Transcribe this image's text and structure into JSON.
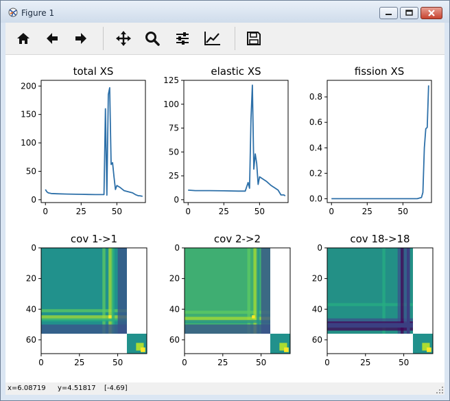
{
  "window": {
    "title": "Figure 1"
  },
  "toolbar": {
    "buttons": [
      {
        "name": "home-button",
        "icon": "home-icon"
      },
      {
        "name": "back-button",
        "icon": "arrow-left-icon"
      },
      {
        "name": "forward-button",
        "icon": "arrow-right-icon"
      },
      {
        "name": "pan-button",
        "icon": "move-arrows-icon"
      },
      {
        "name": "zoom-button",
        "icon": "magnifier-icon"
      },
      {
        "name": "configure-subplots-button",
        "icon": "sliders-icon"
      },
      {
        "name": "edit-axis-button",
        "icon": "line-chart-icon"
      },
      {
        "name": "save-button",
        "icon": "floppy-disk-icon"
      }
    ]
  },
  "status": {
    "x": "x=6.08719",
    "y": "y=4.51817",
    "value": "[-4.69]"
  },
  "colors": {
    "line": "#2c6fa8",
    "viridis_mid": "#2a8c8b",
    "viridis_green": "#3fbc73",
    "viridis_yellow": "#fde725",
    "viridis_dark": "#3b3f82"
  },
  "chart_data": [
    {
      "type": "line",
      "title": "total XS",
      "xticks": [
        "0",
        "25",
        "50"
      ],
      "yticks": [
        "0",
        "50",
        "100",
        "150",
        "200"
      ],
      "xlim": [
        -3,
        70
      ],
      "ylim": [
        -5,
        210
      ],
      "x": [
        0,
        1,
        2,
        4,
        8,
        15,
        25,
        35,
        40,
        41,
        42,
        43,
        44,
        45,
        46,
        47,
        48,
        49,
        50,
        52,
        55,
        58,
        61,
        63,
        65,
        66,
        67,
        68
      ],
      "values": [
        18,
        14,
        12,
        11,
        10.5,
        10,
        9.5,
        9,
        9,
        9,
        160,
        8,
        185,
        197,
        62,
        65,
        40,
        18,
        25,
        22,
        16,
        14,
        12,
        9,
        7,
        7,
        6.5,
        6
      ]
    },
    {
      "type": "line",
      "title": "elastic XS",
      "xticks": [
        "0",
        "25",
        "50"
      ],
      "yticks": [
        "0",
        "25",
        "50",
        "75",
        "100",
        "125"
      ],
      "xlim": [
        -3,
        70
      ],
      "ylim": [
        -3,
        125
      ],
      "x": [
        0,
        5,
        15,
        25,
        35,
        40,
        42,
        43,
        44,
        45,
        46,
        47,
        48,
        49,
        50,
        52,
        55,
        58,
        61,
        63,
        65,
        67,
        68
      ],
      "values": [
        10,
        9.5,
        9.5,
        9.3,
        9,
        9,
        18,
        12,
        85,
        120,
        32,
        48,
        38,
        16,
        24,
        22,
        19,
        15,
        12,
        10,
        5,
        5,
        4
      ]
    },
    {
      "type": "line",
      "title": "fission XS",
      "xticks": [
        "0",
        "25",
        "50"
      ],
      "yticks": [
        "0.0",
        "0.2",
        "0.4",
        "0.6",
        "0.8"
      ],
      "xlim": [
        -3,
        70
      ],
      "ylim": [
        -0.03,
        0.93
      ],
      "x": [
        0,
        20,
        40,
        55,
        60,
        63,
        64,
        65,
        66,
        67,
        68
      ],
      "values": [
        0,
        0,
        0,
        0,
        0,
        0.01,
        0.05,
        0.4,
        0.55,
        0.56,
        0.89
      ]
    },
    {
      "type": "heatmap",
      "title": "cov 1->1",
      "xticks": [
        "0",
        "25",
        "50"
      ],
      "yticks": [
        "0",
        "20",
        "40",
        "60"
      ],
      "xlim": [
        0,
        69
      ],
      "ylim": [
        69,
        0
      ]
    },
    {
      "type": "heatmap",
      "title": "cov 2->2",
      "xticks": [
        "0",
        "25",
        "50"
      ],
      "yticks": [
        "0",
        "20",
        "40",
        "60"
      ],
      "xlim": [
        0,
        69
      ],
      "ylim": [
        69,
        0
      ]
    },
    {
      "type": "heatmap",
      "title": "cov 18->18",
      "xticks": [
        "0",
        "25",
        "50"
      ],
      "yticks": [
        "0",
        "20",
        "40",
        "60"
      ],
      "xlim": [
        0,
        69
      ],
      "ylim": [
        69,
        0
      ]
    }
  ]
}
